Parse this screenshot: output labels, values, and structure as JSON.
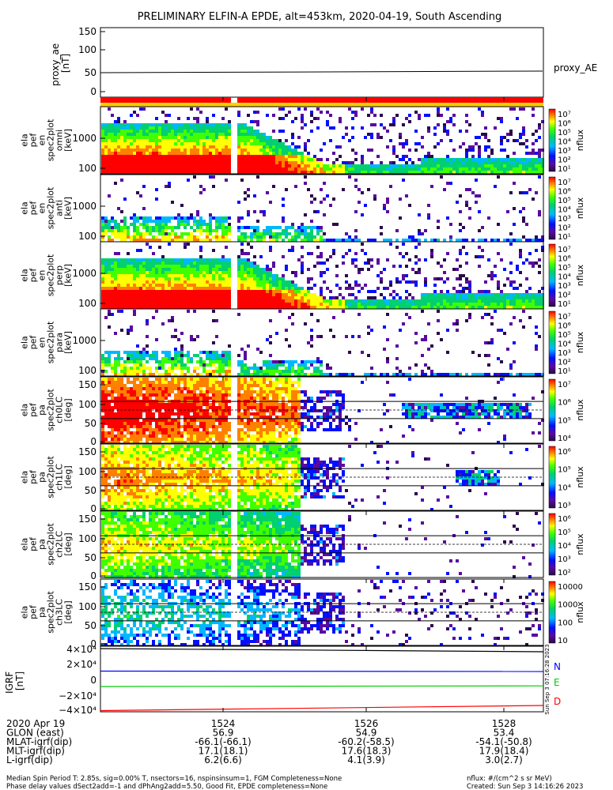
{
  "chart_data": {
    "type": "heatmap",
    "title": "PRELIMINARY ELFIN-A EPDE, alt=453km, 2020-04-19, South Ascending",
    "stamp": "Sun Sep  3 07:16:28 2023",
    "proxy_panel": {
      "ylabel_lines": [
        "proxy_ae",
        "[nT]"
      ],
      "yticks": [
        "150",
        "100",
        "50",
        "0"
      ],
      "ylim": [
        -10,
        150
      ],
      "series_name": "proxy_AE",
      "value": 47
    },
    "energy_panels": [
      {
        "ylabel_lines": [
          "ela",
          "pef",
          "en",
          "spec2plot",
          "omni",
          "[keV]"
        ],
        "yticks": [
          "1000",
          "100"
        ],
        "colorbar": {
          "label": "nflux",
          "ticks": [
            "10⁷",
            "10⁶",
            "10⁵",
            "10⁴",
            "10³",
            "10²",
            "10¹"
          ]
        }
      },
      {
        "ylabel_lines": [
          "ela",
          "pef",
          "en",
          "spec2plot",
          "anti",
          "[keV]"
        ],
        "yticks": [
          "1000",
          "100"
        ],
        "colorbar": {
          "label": "nflux",
          "ticks": [
            "10⁷",
            "10⁶",
            "10⁵",
            "10⁴",
            "10³",
            "10²",
            "10¹"
          ]
        }
      },
      {
        "ylabel_lines": [
          "ela",
          "pef",
          "en",
          "spec2plot",
          "perp",
          "[keV]"
        ],
        "yticks": [
          "1000",
          "100"
        ],
        "colorbar": {
          "label": "nflux",
          "ticks": [
            "10⁷",
            "10⁶",
            "10⁵",
            "10⁴",
            "10³",
            "10²",
            "10¹"
          ]
        }
      },
      {
        "ylabel_lines": [
          "ela",
          "pef",
          "en",
          "spec2plot",
          "para",
          "[keV]"
        ],
        "yticks": [
          "1000",
          "100"
        ],
        "colorbar": {
          "label": "nflux",
          "ticks": [
            "10⁷",
            "10⁶",
            "10⁵",
            "10⁴",
            "10³",
            "10²",
            "10¹"
          ]
        }
      }
    ],
    "pa_panels": [
      {
        "ylabel_lines": [
          "ela",
          "pef",
          "pa",
          "spec2plot",
          "ch0LC",
          "[deg]"
        ],
        "yticks": [
          "150",
          "100",
          "50",
          "0"
        ],
        "colorbar": {
          "label": "nflux",
          "ticks": [
            "10⁷",
            "10⁶",
            "10⁵",
            "10⁴"
          ]
        }
      },
      {
        "ylabel_lines": [
          "ela",
          "pef",
          "pa",
          "spec2plot",
          "ch1LC",
          "[deg]"
        ],
        "yticks": [
          "150",
          "100",
          "50",
          "0"
        ],
        "colorbar": {
          "label": "nflux",
          "ticks": [
            "10⁶",
            "10⁵",
            "10⁴",
            "10³"
          ]
        }
      },
      {
        "ylabel_lines": [
          "ela",
          "pef",
          "pa",
          "spec2plot",
          "ch2LC",
          "[deg]"
        ],
        "yticks": [
          "150",
          "100",
          "50",
          "0"
        ],
        "colorbar": {
          "label": "nflux",
          "ticks": [
            "10⁶",
            "10⁵",
            "10⁴",
            "10³",
            "10²"
          ]
        }
      },
      {
        "ylabel_lines": [
          "ela",
          "pef",
          "pa",
          "spec2plot",
          "ch3LC",
          "[deg]"
        ],
        "yticks": [
          "150",
          "100",
          "50",
          "0"
        ],
        "colorbar": {
          "label": "nflux",
          "ticks": [
            "10000",
            "1000",
            "100",
            "10"
          ]
        }
      }
    ],
    "igrf_panel": {
      "ylabel_lines": [
        "IGRF",
        "[nT]"
      ],
      "yticks": [
        "4×10⁴",
        "2×10⁴",
        "0",
        "−2×10⁴",
        "−4×10⁴"
      ],
      "ylim": [
        -40000,
        40000
      ],
      "series": [
        {
          "name": "N",
          "color": "#0000ff",
          "values": [
            10500,
            10000
          ]
        },
        {
          "name": "E",
          "color": "#00cc00",
          "values": [
            -9000,
            -8200
          ]
        },
        {
          "name": "D",
          "color": "#ff0000",
          "values": [
            -39500,
            -33000
          ]
        },
        {
          "name": "",
          "color": "#000000",
          "values": [
            39000,
            35000
          ]
        }
      ]
    },
    "x_ticks": [
      "1524",
      "1526",
      "1528"
    ],
    "ephemeris": [
      {
        "label": "2020 Apr 19",
        "values": [
          "1524",
          "1526",
          "1528"
        ]
      },
      {
        "label": "GLON (east)",
        "values": [
          "56.9",
          "54.9",
          "53.4"
        ]
      },
      {
        "label": "MLAT-igrf(dip)",
        "values": [
          "-66.1(-66.1)",
          "-60.2(-58.5)",
          "-54.1(-50.8)"
        ]
      },
      {
        "label": "MLT-igrf(dip)",
        "values": [
          "17.1(18.1)",
          "17.6(18.3)",
          "17.9(18.4)"
        ]
      },
      {
        "label": "L-igrf(dip)",
        "values": [
          "6.2(6.6)",
          "4.1(3.9)",
          "3.0(2.7)"
        ]
      }
    ],
    "footer": {
      "left1": "Median Spin Period T: 2.85s, sig=0.00% T, nsectors=16, nspinsinsum=1, FGM Completeness=None",
      "left2": "Phase delay values dSect2add=-1 and dPhAng2add=5.50, Good Fit, EPDE completeness=None",
      "right1": "nflux: #/(cm^2 s sr MeV)",
      "right2": "Created: Sun Sep  3 14:16:26 2023"
    }
  }
}
